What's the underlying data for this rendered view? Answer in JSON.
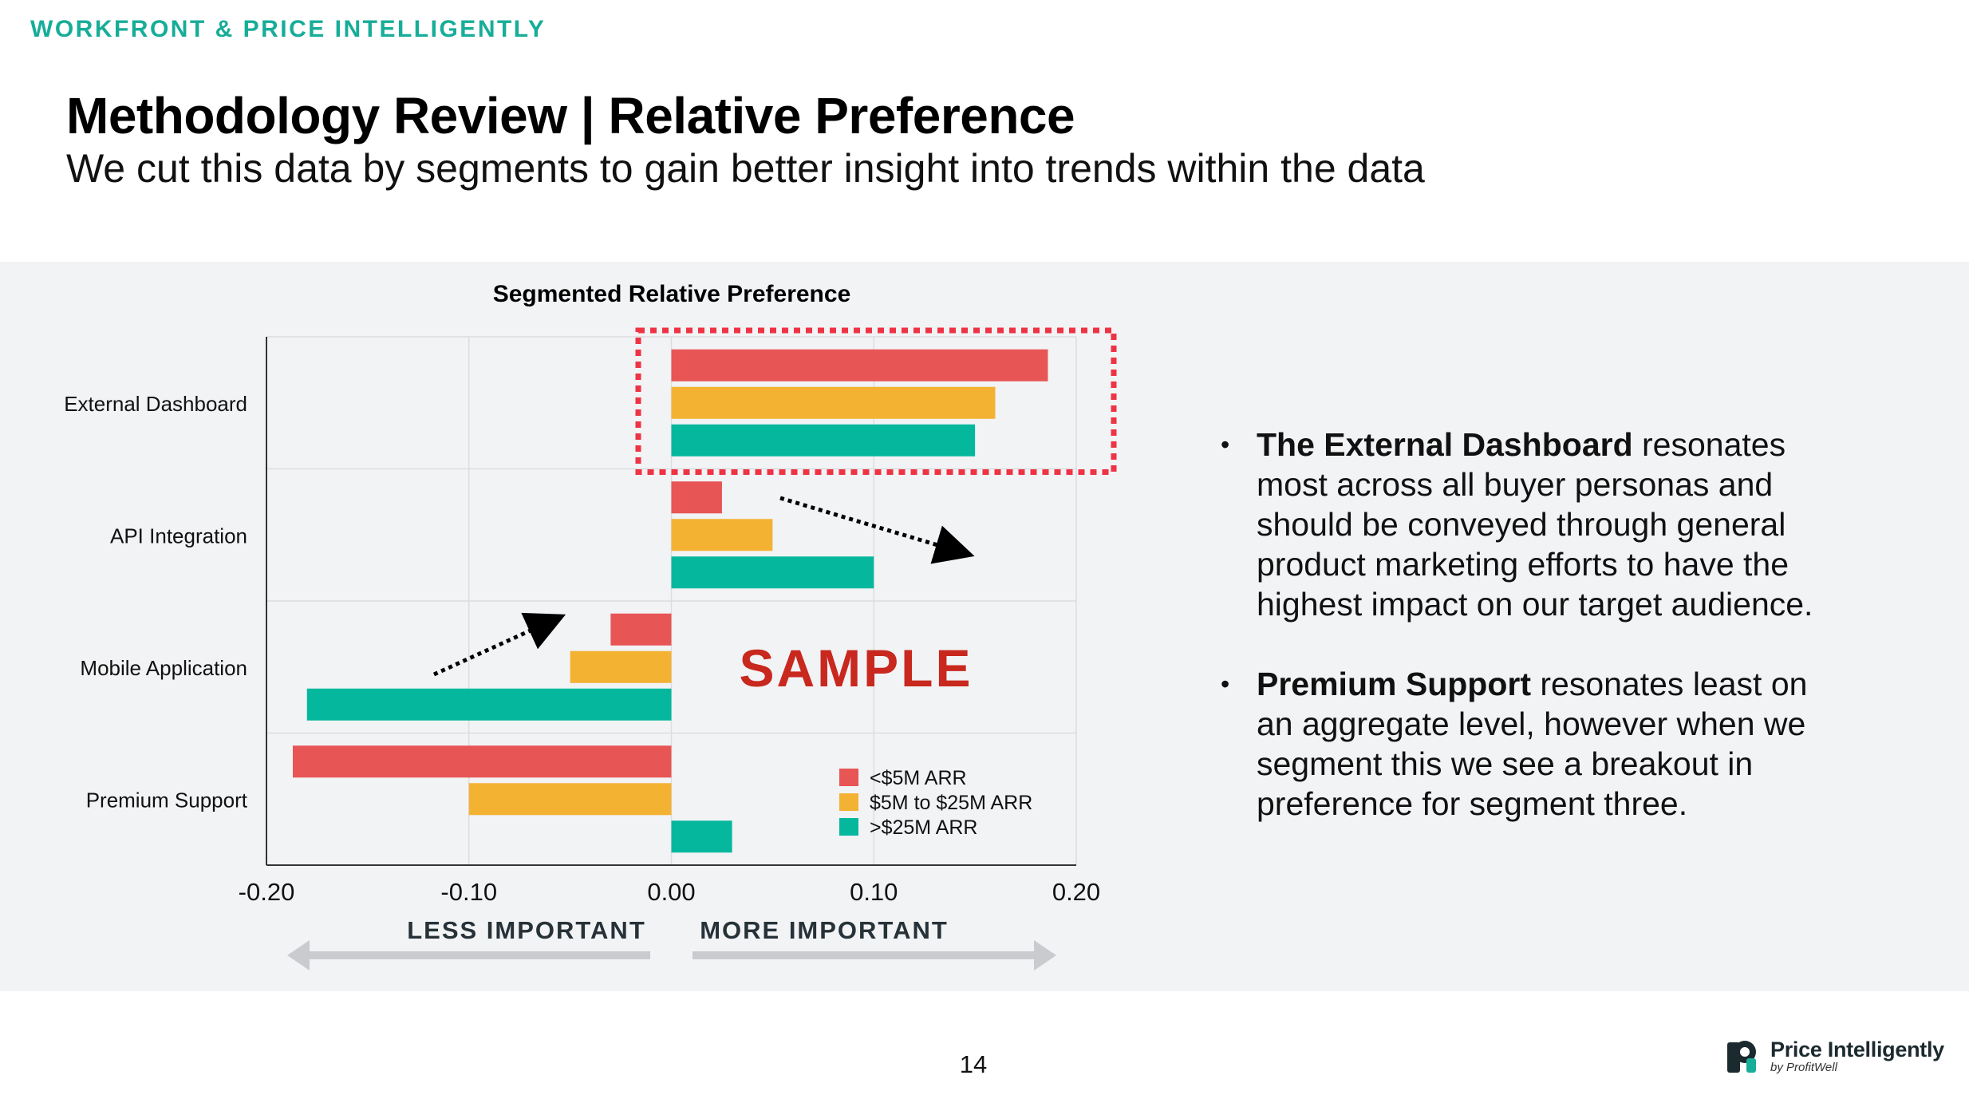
{
  "header": {
    "kicker": "WORKFRONT & PRICE INTELLIGENTLY",
    "title": "Methodology Review | Relative Preference",
    "subtitle": "We cut this data by segments to gain better insight into trends within the data"
  },
  "chart_data": {
    "type": "bar",
    "orientation": "horizontal",
    "title": "Segmented Relative Preference",
    "categories": [
      "External Dashboard",
      "API Integration",
      "Mobile Application",
      "Premium Support"
    ],
    "series": [
      {
        "name": "<$5M ARR",
        "color": "#e85555",
        "values": [
          0.186,
          0.025,
          -0.03,
          -0.187
        ]
      },
      {
        "name": "$5M to $25M ARR",
        "color": "#f4b233",
        "values": [
          0.16,
          0.05,
          -0.05,
          -0.1
        ]
      },
      {
        "name": ">$25M ARR",
        "color": "#05b89d",
        "values": [
          0.15,
          0.1,
          -0.18,
          0.03
        ]
      }
    ],
    "xlim": [
      -0.2,
      0.2
    ],
    "xticks": [
      "-0.20",
      "-0.10",
      "0.00",
      "0.10",
      "0.20"
    ],
    "grid": true,
    "legend_position": "bottom-right",
    "annotations": {
      "watermark": "SAMPLE",
      "left_arrow_label": "LESS IMPORTANT",
      "right_arrow_label": "MORE IMPORTANT",
      "highlight_category": "External Dashboard",
      "highlight_color": "#ee3344"
    }
  },
  "bullets": [
    {
      "bold": "The External Dashboard",
      "text": " resonates most across all buyer personas and should be conveyed through general product marketing efforts to have the highest impact on our target audience."
    },
    {
      "bold": "Premium Support",
      "text": " resonates least on an aggregate level, however when we segment this we see a breakout in preference for segment three."
    }
  ],
  "footer": {
    "page_number": "14",
    "logo_name": "Price Intelligently",
    "logo_sub": "by ProfitWell",
    "logo_icon": "price-intelligently-logo-icon"
  },
  "colors": {
    "accent": "#17ad98",
    "band_background": "#f2f3f5",
    "watermark": "#c8281e"
  }
}
